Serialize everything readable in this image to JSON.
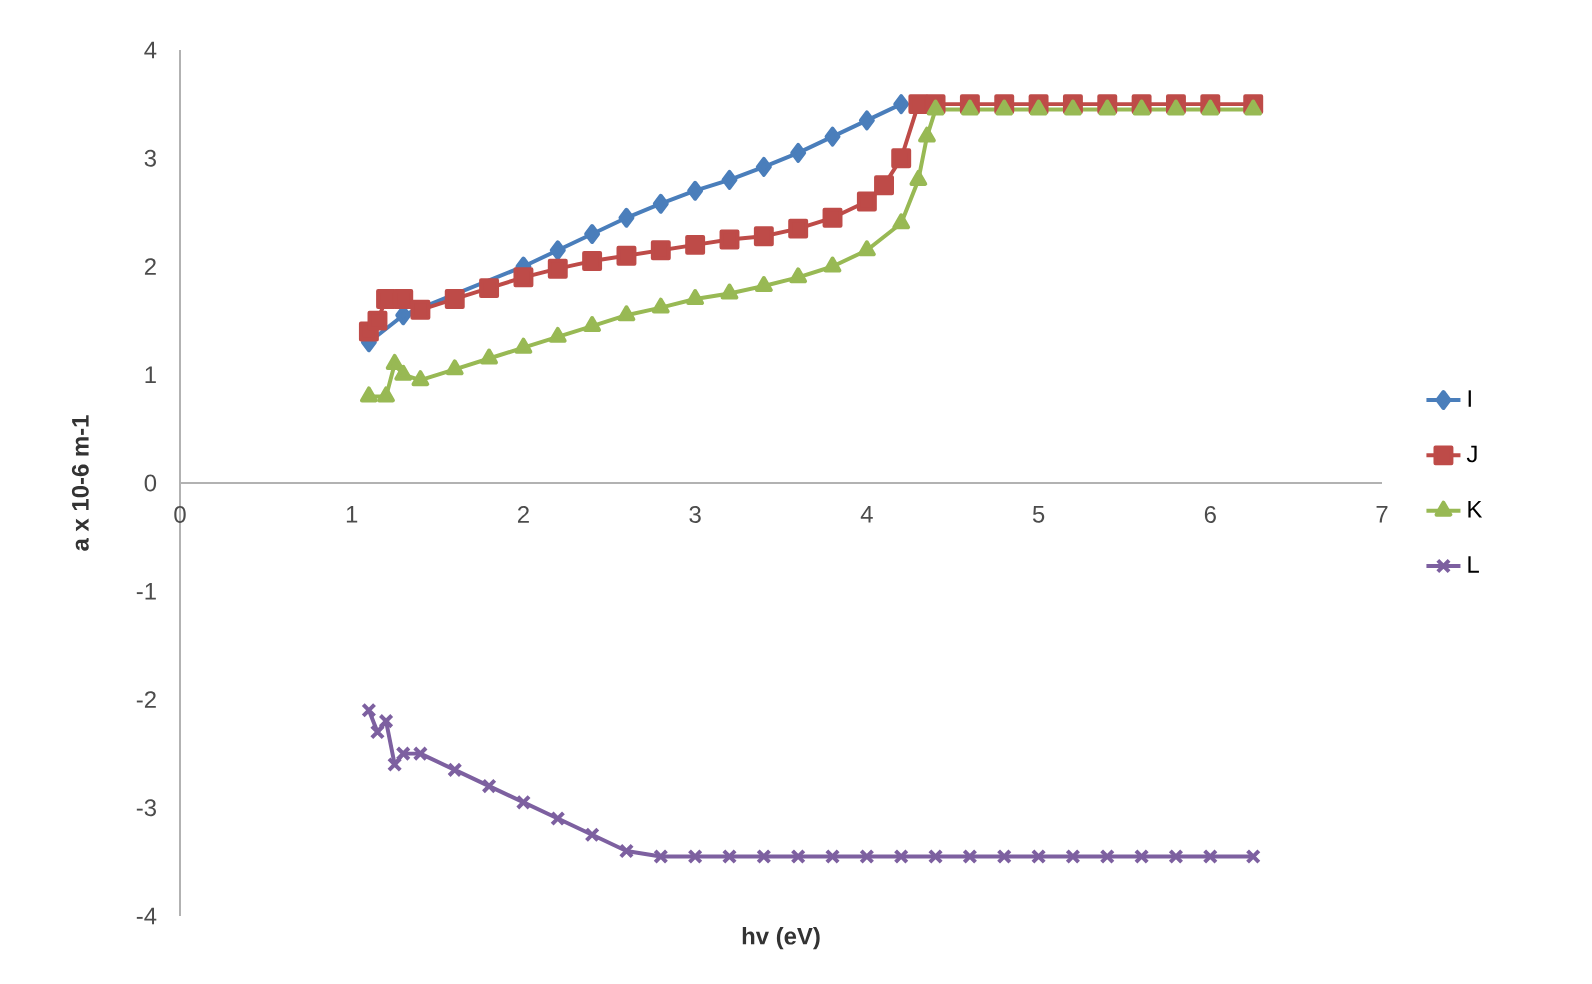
{
  "chart_data": {
    "type": "line",
    "xlabel": "hv (eV)",
    "ylabel": "a x 10-6 m-1",
    "xlim": [
      0,
      7
    ],
    "xticks": [
      0,
      1,
      2,
      3,
      4,
      5,
      6,
      7
    ],
    "ylim": [
      -4,
      4
    ],
    "yticks": [
      -4,
      -3,
      -2,
      -1,
      0,
      1,
      2,
      3,
      4
    ],
    "grid": false,
    "legend": "right",
    "series": [
      {
        "name": "I",
        "color": "#4a7ebb",
        "marker": "diamond",
        "x": [
          1.1,
          1.2,
          1.3,
          1.4,
          1.6,
          1.8,
          2.0,
          2.2,
          2.4,
          2.6,
          2.8,
          3.0,
          3.2,
          3.4,
          3.6,
          3.8,
          4.0,
          4.2
        ],
        "values": [
          1.3,
          null,
          1.55,
          null,
          null,
          null,
          2.0,
          2.15,
          2.3,
          2.45,
          2.58,
          2.7,
          2.8,
          2.92,
          3.05,
          3.2,
          3.35,
          3.5
        ]
      },
      {
        "name": "J",
        "color": "#be4b48",
        "marker": "square",
        "x": [
          1.1,
          1.15,
          1.2,
          1.3,
          1.4,
          1.6,
          1.8,
          2.0,
          2.2,
          2.4,
          2.6,
          2.8,
          3.0,
          3.2,
          3.4,
          3.6,
          3.8,
          4.0,
          4.1,
          4.2,
          4.3,
          4.4,
          4.6,
          4.8,
          5.0,
          5.2,
          5.4,
          5.6,
          5.8,
          6.0,
          6.25
        ],
        "values": [
          1.4,
          1.5,
          1.7,
          1.7,
          1.6,
          1.7,
          1.8,
          1.9,
          1.98,
          2.05,
          2.1,
          2.15,
          2.2,
          2.25,
          2.28,
          2.35,
          2.45,
          2.6,
          2.75,
          3.0,
          3.5,
          3.5,
          3.5,
          3.5,
          3.5,
          3.5,
          3.5,
          3.5,
          3.5,
          3.5,
          3.5
        ]
      },
      {
        "name": "K",
        "color": "#98b954",
        "marker": "triangle",
        "x": [
          1.1,
          1.2,
          1.25,
          1.3,
          1.4,
          1.6,
          1.8,
          2.0,
          2.2,
          2.4,
          2.6,
          2.8,
          3.0,
          3.2,
          3.4,
          3.6,
          3.8,
          4.0,
          4.2,
          4.3,
          4.35,
          4.4,
          4.6,
          4.8,
          5.0,
          5.2,
          5.4,
          5.6,
          5.8,
          6.0,
          6.25
        ],
        "values": [
          0.8,
          0.8,
          1.1,
          1.0,
          0.95,
          1.05,
          1.15,
          1.25,
          1.35,
          1.45,
          1.55,
          1.62,
          1.7,
          1.75,
          1.82,
          1.9,
          2.0,
          2.15,
          2.4,
          2.8,
          3.2,
          3.45,
          3.45,
          3.45,
          3.45,
          3.45,
          3.45,
          3.45,
          3.45,
          3.45,
          3.45
        ]
      },
      {
        "name": "L",
        "color": "#7d60a0",
        "marker": "cross",
        "x": [
          1.1,
          1.15,
          1.2,
          1.25,
          1.3,
          1.4,
          1.6,
          1.8,
          2.0,
          2.2,
          2.4,
          2.6,
          2.8,
          3.0,
          3.2,
          3.4,
          3.6,
          3.8,
          4.0,
          4.2,
          4.4,
          4.6,
          4.8,
          5.0,
          5.2,
          5.4,
          5.6,
          5.8,
          6.0,
          6.25
        ],
        "values": [
          -2.1,
          -2.3,
          -2.2,
          -2.6,
          -2.5,
          -2.5,
          -2.65,
          -2.8,
          -2.95,
          -3.1,
          -3.25,
          -3.4,
          -3.45,
          -3.45,
          -3.45,
          -3.45,
          -3.45,
          -3.45,
          -3.45,
          -3.45,
          -3.45,
          -3.45,
          -3.45,
          -3.45,
          -3.45,
          -3.45,
          -3.45,
          -3.45,
          -3.45,
          -3.45
        ]
      }
    ]
  }
}
